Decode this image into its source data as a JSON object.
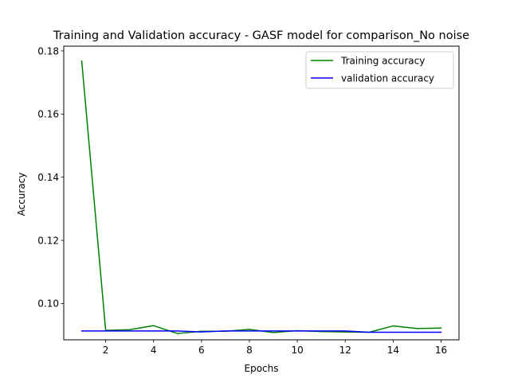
{
  "chart_data": {
    "type": "line",
    "title": "Training and Validation accuracy - GASF model for comparison_No noise",
    "xlabel": "Epochs",
    "ylabel": "Accuracy",
    "xlim": [
      0.25,
      16.75
    ],
    "ylim": [
      0.0885,
      0.1815
    ],
    "xticks": [
      2,
      4,
      6,
      8,
      10,
      12,
      14,
      16
    ],
    "xtick_labels": [
      "2",
      "4",
      "6",
      "8",
      "10",
      "12",
      "14",
      "16"
    ],
    "yticks": [
      0.1,
      0.12,
      0.14,
      0.16,
      0.18
    ],
    "ytick_labels": [
      "0.10",
      "0.12",
      "0.14",
      "0.16",
      "0.18"
    ],
    "grid": false,
    "legend": {
      "position": "top-right"
    },
    "x": [
      1,
      2,
      3,
      4,
      5,
      6,
      7,
      8,
      9,
      10,
      11,
      12,
      13,
      14,
      15,
      16
    ],
    "series": [
      {
        "name": "Training accuracy",
        "color": "#008000",
        "values": [
          0.1768,
          0.0915,
          0.0917,
          0.093,
          0.0905,
          0.0912,
          0.0912,
          0.0918,
          0.0908,
          0.0914,
          0.0911,
          0.091,
          0.0909,
          0.0929,
          0.0921,
          0.0922
        ]
      },
      {
        "name": "validation accuracy",
        "color": "#0000ff",
        "values": [
          0.0913,
          0.0913,
          0.0913,
          0.0913,
          0.0913,
          0.091,
          0.0913,
          0.0913,
          0.0913,
          0.0913,
          0.0913,
          0.0913,
          0.0909,
          0.0909,
          0.0909,
          0.0909
        ]
      }
    ]
  }
}
